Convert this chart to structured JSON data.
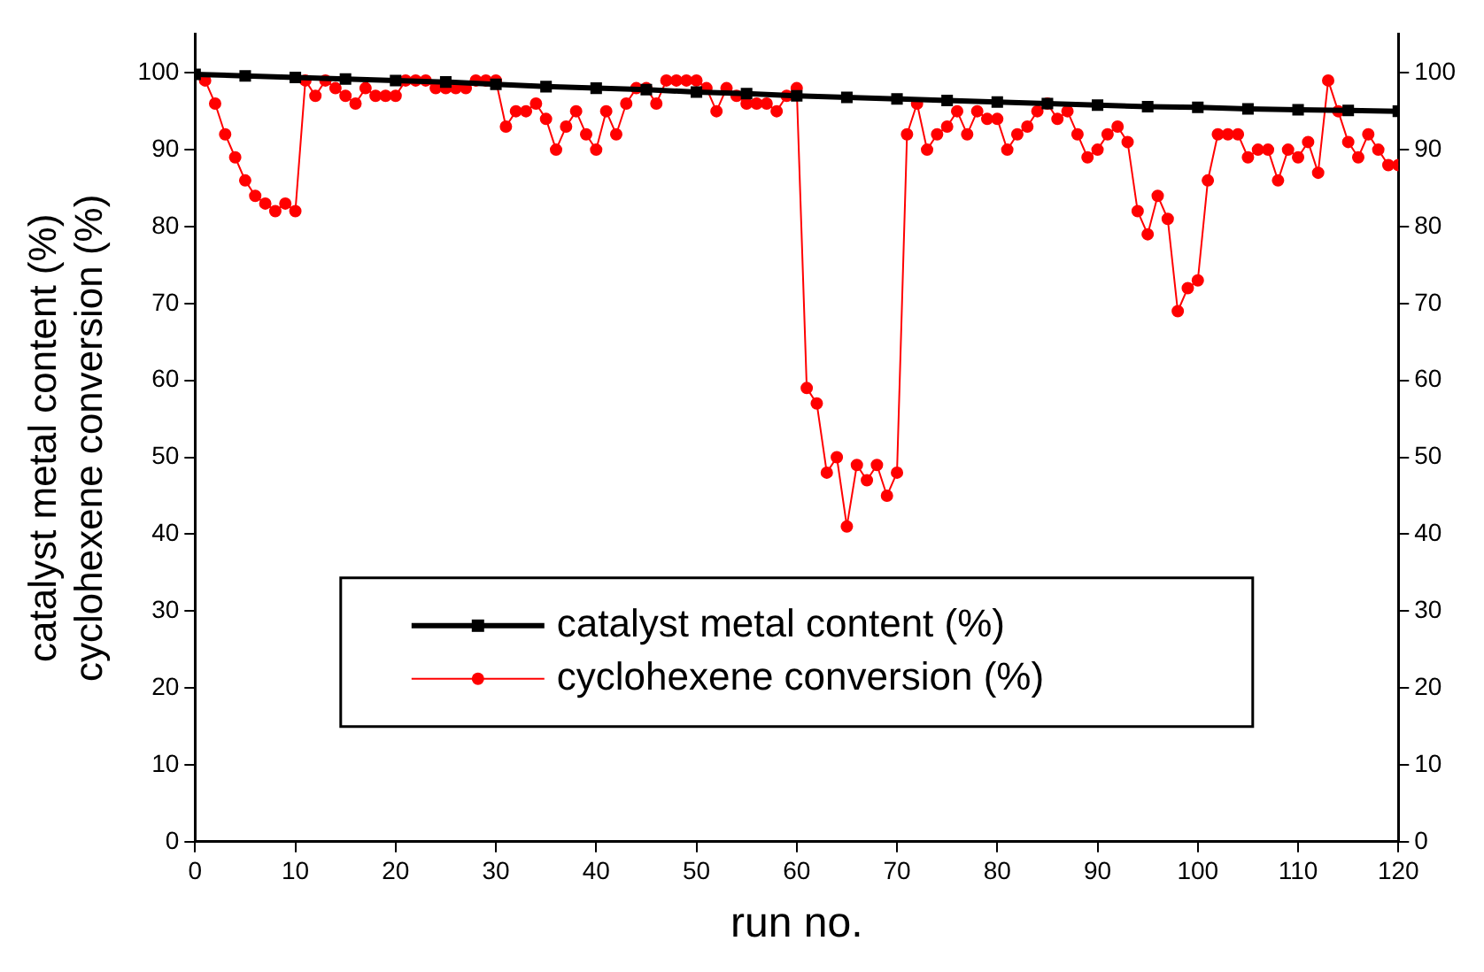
{
  "chart_data": {
    "type": "line",
    "xlabel": "run no.",
    "ylabel": "catalyst metal content (%)\ncyclohexene conversion (%)",
    "xlim": [
      0,
      120
    ],
    "xticks": [
      0,
      10,
      20,
      30,
      40,
      50,
      60,
      70,
      80,
      90,
      100,
      110,
      120
    ],
    "ylim": [
      0,
      105
    ],
    "yticks": [
      0,
      10,
      20,
      30,
      40,
      50,
      60,
      70,
      80,
      90,
      100
    ],
    "y2lim": [
      0,
      105
    ],
    "y2ticks": [
      0,
      10,
      20,
      30,
      40,
      50,
      60,
      70,
      80,
      90,
      100
    ],
    "legend": "bottom",
    "grid": false,
    "series": [
      {
        "name": "catalyst metal content (%)",
        "color": "#000000",
        "marker": "square",
        "x": [
          0,
          5,
          10,
          15,
          20,
          25,
          30,
          35,
          40,
          45,
          50,
          55,
          60,
          65,
          70,
          75,
          80,
          85,
          90,
          95,
          100,
          105,
          110,
          115,
          120
        ],
        "values": [
          99.8,
          99.6,
          99.4,
          99.2,
          99,
          98.8,
          98.5,
          98.2,
          98,
          97.8,
          97.5,
          97.3,
          97,
          96.8,
          96.6,
          96.4,
          96.2,
          96,
          95.8,
          95.6,
          95.5,
          95.3,
          95.2,
          95.1,
          95
        ]
      },
      {
        "name": "cyclohexene conversion (%)",
        "color": "#ff0000",
        "marker": "circle",
        "x": [
          1,
          2,
          3,
          4,
          5,
          6,
          7,
          8,
          9,
          10,
          11,
          12,
          13,
          14,
          15,
          16,
          17,
          18,
          19,
          20,
          21,
          22,
          23,
          24,
          25,
          26,
          27,
          28,
          29,
          30,
          31,
          32,
          33,
          34,
          35,
          36,
          37,
          38,
          39,
          40,
          41,
          42,
          43,
          44,
          45,
          46,
          47,
          48,
          49,
          50,
          51,
          52,
          53,
          54,
          55,
          56,
          57,
          58,
          59,
          60,
          61,
          62,
          63,
          64,
          65,
          66,
          67,
          68,
          69,
          70,
          71,
          72,
          73,
          74,
          75,
          76,
          77,
          78,
          79,
          80,
          81,
          82,
          83,
          84,
          85,
          86,
          87,
          88,
          89,
          90,
          91,
          92,
          93,
          94,
          95,
          96,
          97,
          98,
          99,
          100,
          101,
          102,
          103,
          104,
          105,
          106,
          107,
          108,
          109,
          110,
          111,
          112,
          113,
          114,
          115,
          116,
          117,
          118,
          119,
          120
        ],
        "values": [
          99,
          96,
          92,
          89,
          86,
          84,
          83,
          82,
          83,
          82,
          99,
          97,
          99,
          98,
          97,
          96,
          98,
          97,
          97,
          97,
          99,
          99,
          99,
          98,
          98,
          98,
          98,
          99,
          99,
          99,
          93,
          95,
          95,
          96,
          94,
          90,
          93,
          95,
          92,
          90,
          95,
          92,
          96,
          98,
          98,
          96,
          99,
          99,
          99,
          99,
          98,
          95,
          98,
          97,
          96,
          96,
          96,
          95,
          97,
          98,
          59,
          57,
          48,
          50,
          41,
          49,
          47,
          49,
          45,
          48,
          92,
          96,
          90,
          92,
          93,
          95,
          92,
          95,
          94,
          94,
          90,
          92,
          93,
          95,
          96,
          94,
          95,
          92,
          89,
          90,
          92,
          93,
          91,
          82,
          79,
          84,
          81,
          69,
          72,
          73,
          86,
          92,
          92,
          92,
          89,
          90,
          90,
          86,
          90,
          89,
          91,
          87,
          99,
          95,
          91,
          89,
          92,
          90,
          88,
          88
        ]
      }
    ]
  }
}
